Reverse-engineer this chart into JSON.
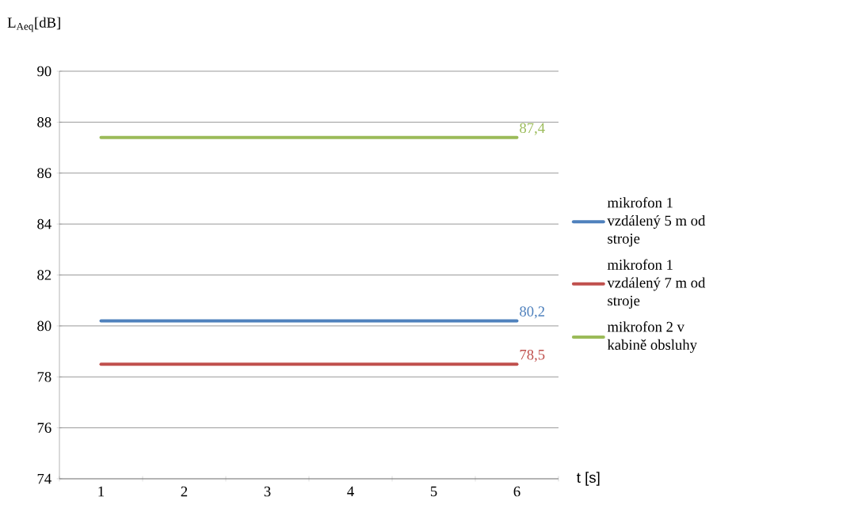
{
  "chart_data": {
    "type": "line",
    "ylabel": "L$_{Aeq}$[dB]",
    "xlabel": "t [s]",
    "categories": [
      "1",
      "2",
      "3",
      "4",
      "5",
      "6"
    ],
    "ylim": [
      74,
      90
    ],
    "yticks": [
      74,
      76,
      78,
      80,
      82,
      84,
      86,
      88,
      90
    ],
    "grid": "y",
    "legend": "right",
    "marker": "none",
    "line_style": "solid",
    "series": [
      {
        "name": "mikrofon 1 vzdálený 5 m od stroje",
        "color": "#4f81bd",
        "values": [
          80.2,
          80.2,
          80.2,
          80.2,
          80.2,
          80.2
        ],
        "value_labels": [
          null,
          null,
          null,
          null,
          null,
          "80,2"
        ]
      },
      {
        "name": "mikrofon 1 vzdálený 7 m od stroje",
        "color": "#c0504d",
        "values": [
          78.5,
          78.5,
          78.5,
          78.5,
          78.5,
          78.5
        ],
        "value_labels": [
          null,
          null,
          null,
          null,
          null,
          "78,5"
        ]
      },
      {
        "name": "mikrofon 2 v kabině obsluhy",
        "color": "#9bbb59",
        "values": [
          87.4,
          87.4,
          87.4,
          87.4,
          87.4,
          87.4
        ],
        "value_labels": [
          null,
          null,
          null,
          null,
          null,
          "87,4"
        ]
      }
    ]
  }
}
